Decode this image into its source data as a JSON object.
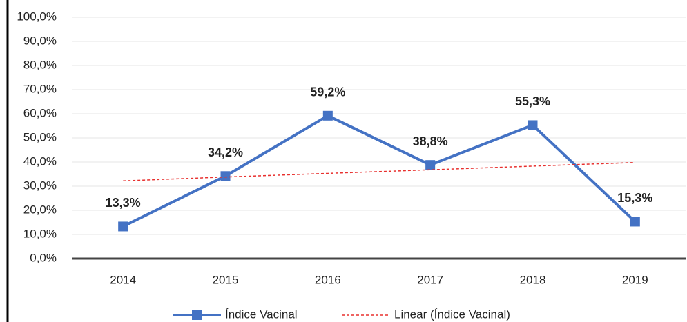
{
  "chart_data": {
    "type": "line",
    "categories": [
      "2014",
      "2015",
      "2016",
      "2017",
      "2018",
      "2019"
    ],
    "series": [
      {
        "name": "Índice Vacinal",
        "color": "#4472c4",
        "values": [
          13.3,
          34.2,
          59.2,
          38.8,
          55.3,
          15.3
        ],
        "value_labels": [
          "13,3%",
          "34,2%",
          "59,2%",
          "38,8%",
          "55,3%",
          "15,3%"
        ]
      },
      {
        "name": "Linear (Índice Vacinal)",
        "color": "#e8302e",
        "dashed": true,
        "values": [
          32.2,
          33.8,
          35.3,
          36.8,
          38.3,
          39.8
        ]
      }
    ],
    "ylim": [
      0,
      100
    ],
    "yticks": [
      {
        "value": 0,
        "label": "0,0%"
      },
      {
        "value": 10,
        "label": "10,0%"
      },
      {
        "value": 20,
        "label": "20,0%"
      },
      {
        "value": 30,
        "label": "30,0%"
      },
      {
        "value": 40,
        "label": "40,0%"
      },
      {
        "value": 50,
        "label": "50,0%"
      },
      {
        "value": 60,
        "label": "60,0%"
      },
      {
        "value": 70,
        "label": "70,0%"
      },
      {
        "value": 80,
        "label": "80,0%"
      },
      {
        "value": 90,
        "label": "90,0%"
      },
      {
        "value": 100,
        "label": "100,0%"
      }
    ],
    "grid": true,
    "legend": "bottom"
  }
}
